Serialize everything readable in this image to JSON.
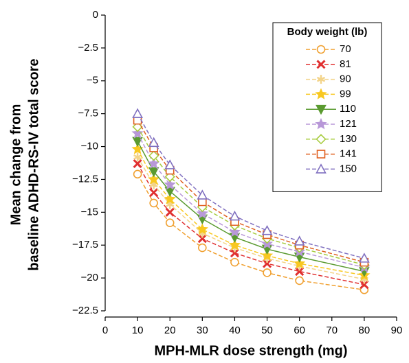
{
  "chart_data": {
    "type": "line",
    "x_label": "MPH-MLR dose strength (mg)",
    "y_label": [
      "Mean change from",
      "baseline ADHD-RS-IV total score"
    ],
    "legend_title": "Body weight (lb)",
    "legend_position": "upper right",
    "x": [
      10,
      15,
      20,
      30,
      40,
      50,
      60,
      80
    ],
    "xlim": [
      0,
      90
    ],
    "xticks": [
      0,
      10,
      20,
      30,
      40,
      50,
      60,
      70,
      80,
      90
    ],
    "ylim": [
      -22.5,
      0
    ],
    "yticks": [
      0,
      {
        "value": -2.5,
        "label": "−2.5"
      },
      {
        "value": -5,
        "label": "−5"
      },
      {
        "value": -7.5,
        "label": "−7.5"
      },
      {
        "value": -10,
        "label": "−10"
      },
      {
        "value": -12.5,
        "label": "−12.5"
      },
      {
        "value": -15,
        "label": "−15"
      },
      {
        "value": -17.5,
        "label": "−17.5"
      },
      {
        "value": -20,
        "label": "−20"
      },
      {
        "value": -22.5,
        "label": "−22.5"
      }
    ],
    "series": [
      {
        "name": "70",
        "color": "#f0a030",
        "marker": "circle",
        "line_style": "dashed",
        "values": [
          -12.1,
          -14.3,
          -15.8,
          -17.7,
          -18.8,
          -19.6,
          -20.2,
          -20.9
        ]
      },
      {
        "name": "81",
        "color": "#e03030",
        "marker": "x",
        "line_style": "dashed",
        "values": [
          -11.3,
          -13.5,
          -15.0,
          -17.0,
          -18.1,
          -18.9,
          -19.5,
          -20.5
        ]
      },
      {
        "name": "90",
        "color": "#f3d48a",
        "marker": "asterisk",
        "line_style": "dashed",
        "values": [
          -10.8,
          -12.9,
          -14.4,
          -16.6,
          -17.7,
          -18.5,
          -19.1,
          -20.1
        ]
      },
      {
        "name": "99",
        "color": "#f8c820",
        "marker": "star",
        "line_style": "dashed",
        "values": [
          -10.2,
          -12.5,
          -14.0,
          -16.3,
          -17.5,
          -18.3,
          -18.9,
          -19.8
        ]
      },
      {
        "name": "110",
        "color": "#5a9a30",
        "marker": "triangle-down",
        "line_style": "solid",
        "values": [
          -9.6,
          -11.9,
          -13.4,
          -15.5,
          -16.9,
          -17.8,
          -18.4,
          -19.5
        ]
      },
      {
        "name": "121",
        "color": "#b898d8",
        "marker": "star",
        "line_style": "dashed",
        "values": [
          -9.0,
          -11.3,
          -12.9,
          -15.1,
          -16.5,
          -17.4,
          -18.0,
          -19.2
        ]
      },
      {
        "name": "130",
        "color": "#a8cc40",
        "marker": "diamond",
        "line_style": "dashed",
        "values": [
          -8.5,
          -10.7,
          -12.3,
          -14.6,
          -16.0,
          -17.0,
          -17.7,
          -19.0
        ]
      },
      {
        "name": "141",
        "color": "#e06020",
        "marker": "square",
        "line_style": "dashed",
        "values": [
          -8.0,
          -10.1,
          -11.8,
          -14.2,
          -15.7,
          -16.7,
          -17.5,
          -18.8
        ]
      },
      {
        "name": "150",
        "color": "#8070c0",
        "marker": "triangle",
        "line_style": "dashed",
        "values": [
          -7.5,
          -9.7,
          -11.4,
          -13.7,
          -15.3,
          -16.4,
          -17.2,
          -18.5
        ]
      }
    ]
  }
}
